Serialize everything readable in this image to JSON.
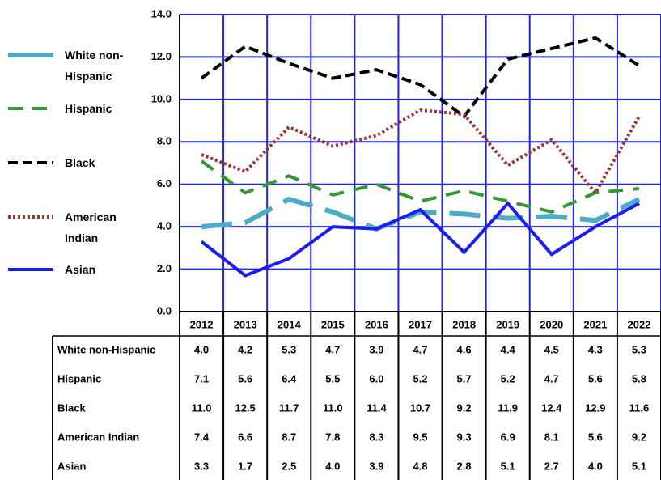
{
  "chart_data": {
    "type": "line",
    "categories": [
      "2012",
      "2013",
      "2014",
      "2015",
      "2016",
      "2017",
      "2018",
      "2019",
      "2020",
      "2021",
      "2022"
    ],
    "ylim": [
      0,
      14
    ],
    "yticks": [
      {
        "value": 0,
        "label": "0.0"
      },
      {
        "value": 2,
        "label": "2.0"
      },
      {
        "value": 4,
        "label": "4.0"
      },
      {
        "value": 6,
        "label": "6.0"
      },
      {
        "value": 8,
        "label": "8.0"
      },
      {
        "value": 10,
        "label": "10.0"
      },
      {
        "value": 12,
        "label": "12.0"
      },
      {
        "value": 14,
        "label": "14.0"
      }
    ],
    "grid": true,
    "grid_color": "#2424d4",
    "legend": "left",
    "series": [
      {
        "name": "White non-Hispanic",
        "color": "#4bacc6",
        "style": "longdash",
        "values": [
          4.0,
          4.2,
          5.3,
          4.7,
          3.9,
          4.7,
          4.6,
          4.4,
          4.5,
          4.3,
          5.3
        ],
        "value_labels": [
          "4.0",
          "4.2",
          "5.3",
          "4.7",
          "3.9",
          "4.7",
          "4.6",
          "4.4",
          "4.5",
          "4.3",
          "5.3"
        ]
      },
      {
        "name": "Hispanic",
        "color": "#339933",
        "style": "dashed",
        "values": [
          7.1,
          5.6,
          6.4,
          5.5,
          6.0,
          5.2,
          5.7,
          5.2,
          4.7,
          5.6,
          5.8
        ],
        "value_labels": [
          "7.1",
          "5.6",
          "6.4",
          "5.5",
          "6.0",
          "5.2",
          "5.7",
          "5.2",
          "4.7",
          "5.6",
          "5.8"
        ]
      },
      {
        "name": "Black",
        "color": "#000000",
        "style": "shortdash",
        "values": [
          11.0,
          12.5,
          11.7,
          11.0,
          11.4,
          10.7,
          9.2,
          11.9,
          12.4,
          12.9,
          11.6
        ],
        "value_labels": [
          "11.0",
          "12.5",
          "11.7",
          "11.0",
          "11.4",
          "10.7",
          "9.2",
          "11.9",
          "12.4",
          "12.9",
          "11.6"
        ]
      },
      {
        "name": "American Indian",
        "color": "#953735",
        "style": "dotted",
        "values": [
          7.4,
          6.6,
          8.7,
          7.8,
          8.3,
          9.5,
          9.3,
          6.9,
          8.1,
          5.6,
          9.2
        ],
        "value_labels": [
          "7.4",
          "6.6",
          "8.7",
          "7.8",
          "8.3",
          "9.5",
          "9.3",
          "6.9",
          "8.1",
          "5.6",
          "9.2"
        ]
      },
      {
        "name": "Asian",
        "color": "#1c1cf0",
        "style": "solid",
        "values": [
          3.3,
          1.7,
          2.5,
          4.0,
          3.9,
          4.8,
          2.8,
          5.1,
          2.7,
          4.0,
          5.1
        ],
        "value_labels": [
          "3.3",
          "1.7",
          "2.5",
          "4.0",
          "3.9",
          "4.8",
          "2.8",
          "5.1",
          "2.7",
          "4.0",
          "5.1"
        ]
      }
    ]
  }
}
